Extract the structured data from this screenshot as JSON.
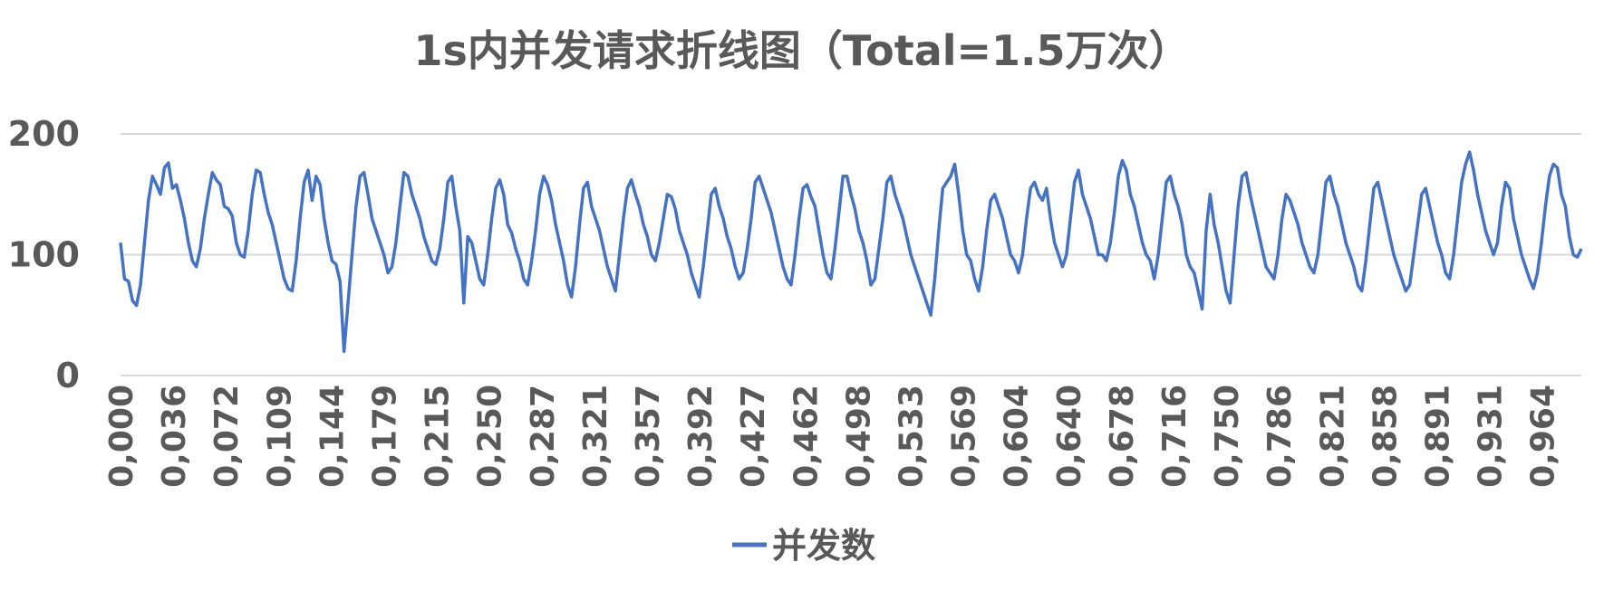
{
  "chart_data": {
    "type": "line",
    "title": "1s内并发请求折线图（Total=1.5万次）",
    "xlabel": "",
    "ylabel": "",
    "ylim": [
      0,
      200
    ],
    "yticks": [
      0,
      100,
      200
    ],
    "xticks": [
      "0,000",
      "0,036",
      "0,072",
      "0,109",
      "0,144",
      "0,179",
      "0,215",
      "0,250",
      "0,287",
      "0,321",
      "0,357",
      "0,392",
      "0,427",
      "0,462",
      "0,498",
      "0,533",
      "0,569",
      "0,604",
      "0,640",
      "0,678",
      "0,716",
      "0,750",
      "0,786",
      "0,821",
      "0,858",
      "0,891",
      "0,931",
      "0,964"
    ],
    "grid": true,
    "legend_position": "bottom",
    "colors": {
      "line": "#4472c4",
      "grid": "#d9d9d9",
      "text": "#595959"
    },
    "series": [
      {
        "name": "并发数",
        "x_range": [
          0.0,
          1.0
        ],
        "values": [
          110,
          80,
          78,
          62,
          58,
          75,
          110,
          145,
          165,
          158,
          150,
          172,
          176,
          155,
          158,
          145,
          130,
          110,
          95,
          90,
          105,
          130,
          150,
          168,
          162,
          158,
          140,
          138,
          132,
          110,
          100,
          98,
          120,
          150,
          170,
          168,
          150,
          135,
          125,
          110,
          95,
          80,
          72,
          70,
          95,
          130,
          160,
          170,
          145,
          165,
          158,
          130,
          110,
          95,
          92,
          78,
          20,
          60,
          100,
          140,
          165,
          168,
          150,
          130,
          120,
          110,
          100,
          85,
          90,
          110,
          140,
          168,
          165,
          150,
          140,
          130,
          115,
          105,
          95,
          92,
          105,
          130,
          160,
          165,
          140,
          120,
          60,
          115,
          110,
          95,
          80,
          75,
          100,
          130,
          155,
          162,
          150,
          125,
          118,
          105,
          95,
          80,
          75,
          95,
          120,
          150,
          165,
          158,
          145,
          125,
          110,
          95,
          75,
          65,
          90,
          125,
          155,
          160,
          140,
          130,
          120,
          105,
          90,
          80,
          70,
          100,
          130,
          155,
          162,
          150,
          140,
          125,
          115,
          100,
          95,
          110,
          130,
          150,
          148,
          138,
          120,
          110,
          100,
          85,
          75,
          65,
          90,
          120,
          150,
          155,
          140,
          130,
          115,
          105,
          90,
          80,
          85,
          105,
          130,
          160,
          165,
          155,
          145,
          135,
          120,
          105,
          90,
          80,
          75,
          100,
          130,
          155,
          158,
          148,
          140,
          120,
          100,
          85,
          80,
          105,
          135,
          165,
          165,
          150,
          138,
          120,
          110,
          95,
          75,
          80,
          105,
          130,
          160,
          165,
          150,
          140,
          130,
          115,
          100,
          90,
          80,
          70,
          60,
          50,
          80,
          120,
          155,
          160,
          165,
          175,
          150,
          120,
          100,
          95,
          80,
          70,
          90,
          120,
          145,
          150,
          140,
          130,
          115,
          100,
          95,
          85,
          100,
          130,
          155,
          160,
          150,
          145,
          155,
          130,
          110,
          100,
          90,
          100,
          130,
          160,
          170,
          150,
          140,
          130,
          115,
          100,
          100,
          95,
          110,
          135,
          165,
          178,
          170,
          150,
          140,
          125,
          110,
          100,
          95,
          80,
          100,
          130,
          160,
          165,
          150,
          140,
          125,
          100,
          90,
          85,
          70,
          55,
          120,
          150,
          125,
          110,
          90,
          70,
          60,
          100,
          140,
          165,
          168,
          150,
          135,
          120,
          105,
          90,
          85,
          80,
          100,
          130,
          150,
          145,
          135,
          125,
          110,
          100,
          90,
          85,
          100,
          130,
          160,
          165,
          150,
          140,
          125,
          110,
          100,
          90,
          75,
          70,
          95,
          125,
          155,
          160,
          145,
          130,
          115,
          100,
          90,
          80,
          70,
          75,
          100,
          125,
          150,
          155,
          140,
          125,
          110,
          100,
          85,
          80,
          100,
          130,
          160,
          175,
          185,
          170,
          150,
          135,
          120,
          110,
          100,
          110,
          140,
          160,
          155,
          130,
          115,
          100,
          90,
          80,
          72,
          85,
          110,
          140,
          165,
          175,
          172,
          150,
          140,
          115,
          100,
          98,
          105
        ]
      }
    ]
  }
}
